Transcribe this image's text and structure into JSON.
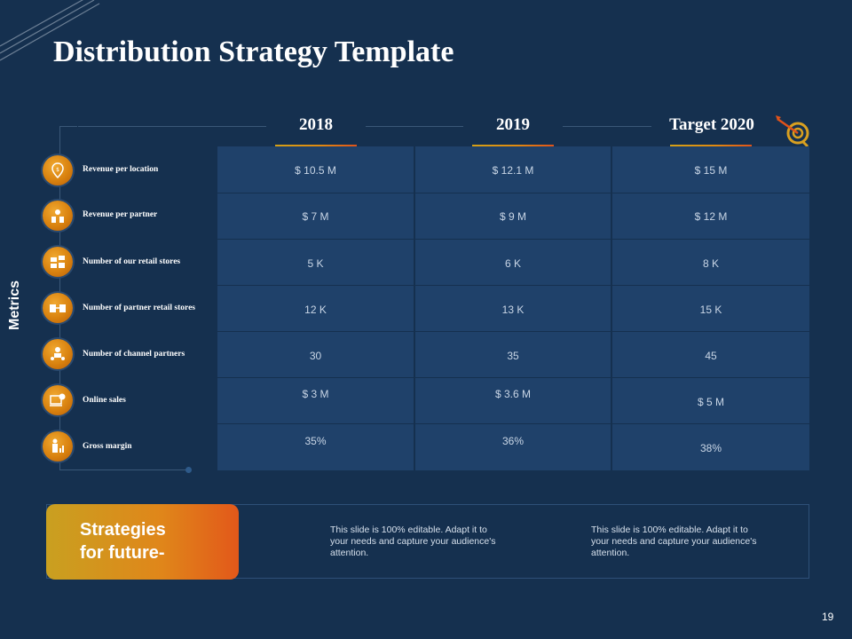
{
  "slide": {
    "title": "Distribution Strategy Template",
    "page_number": "19",
    "metrics_label": "Metrics"
  },
  "table": {
    "columns": [
      "2018",
      "2019",
      "Target 2020"
    ],
    "rows": [
      {
        "label": "Revenue per location",
        "icon": "location-dollar-icon",
        "values": [
          "$ 10.5 M",
          "$ 12.1 M",
          "$ 15 M"
        ]
      },
      {
        "label": "Revenue per partner",
        "icon": "partner-idea-icon",
        "values": [
          "$ 7 M",
          "$ 9 M",
          "$ 12 M"
        ]
      },
      {
        "label": "Number of our  retail stores",
        "icon": "stores-icon",
        "values": [
          "5 K",
          "6 K",
          "8 K"
        ]
      },
      {
        "label": "Number of partner retail stores",
        "icon": "partner-stores-icon",
        "values": [
          "12 K",
          "13 K",
          "15 K"
        ]
      },
      {
        "label": "Number of channel partners",
        "icon": "channel-partners-icon",
        "values": [
          "30",
          "35",
          "45"
        ]
      },
      {
        "label": "Online sales",
        "icon": "online-sales-icon",
        "values": [
          "$ 3 M",
          "$ 3.6 M",
          "$ 5 M"
        ]
      },
      {
        "label": "Gross margin",
        "icon": "gross-margin-icon",
        "values": [
          "35%",
          "36%",
          "38%"
        ]
      }
    ]
  },
  "strategies": {
    "heading_line1": "Strategies",
    "heading_line2": "for future-",
    "note1": "This slide is 100% editable. Adapt it to your needs and capture your audience's attention.",
    "note2": "This slide is 100% editable. Adapt it to your needs and capture your audience's attention."
  },
  "colors": {
    "background": "#15304f",
    "table": "#1f416a",
    "accent_orange": "#e08a10",
    "accent_red": "#e0531a"
  }
}
